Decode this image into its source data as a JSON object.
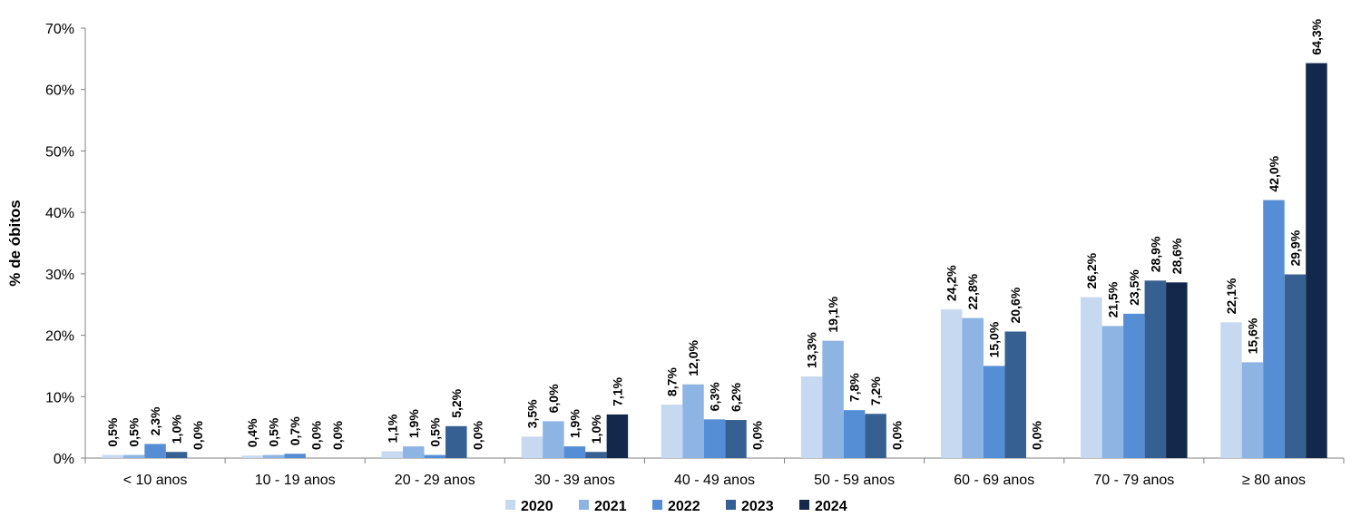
{
  "chart_data": {
    "type": "bar",
    "categories": [
      "< 10 anos",
      "10 - 19 anos",
      "20 - 29 anos",
      "30 - 39 anos",
      "40 - 49 anos",
      "50 - 59 anos",
      "60 - 69 anos",
      "70 - 79 anos",
      "≥ 80 anos"
    ],
    "series": [
      {
        "name": "2020",
        "color": "#c6d9f1",
        "values": [
          0.5,
          0.4,
          1.1,
          3.5,
          8.7,
          13.3,
          24.2,
          26.2,
          22.1
        ],
        "labels": [
          "0,5%",
          "0,4%",
          "1,1%",
          "3,5%",
          "8,7%",
          "13,3%",
          "24,2%",
          "26,2%",
          "22,1%"
        ]
      },
      {
        "name": "2021",
        "color": "#8eb4e3",
        "values": [
          0.5,
          0.5,
          1.9,
          6.0,
          12.0,
          19.1,
          22.8,
          21.5,
          15.6
        ],
        "labels": [
          "0,5%",
          "0,5%",
          "1,9%",
          "6,0%",
          "12,0%",
          "19,1%",
          "22,8%",
          "21,5%",
          "15,6%"
        ]
      },
      {
        "name": "2022",
        "color": "#558ed5",
        "values": [
          2.3,
          0.7,
          0.5,
          1.9,
          6.3,
          7.8,
          15.0,
          23.5,
          42.0
        ],
        "labels": [
          "2,3%",
          "0,7%",
          "0,5%",
          "1,9%",
          "6,3%",
          "7,8%",
          "15,0%",
          "23,5%",
          "42,0%"
        ]
      },
      {
        "name": "2023",
        "color": "#376092",
        "values": [
          1.0,
          0.0,
          5.2,
          1.0,
          6.2,
          7.2,
          20.6,
          28.9,
          29.9
        ],
        "labels": [
          "1,0%",
          "0,0%",
          "5,2%",
          "1,0%",
          "6,2%",
          "7,2%",
          "20,6%",
          "28,9%",
          "29,9%"
        ]
      },
      {
        "name": "2024",
        "color": "#14284b",
        "values": [
          0.0,
          0.0,
          0.0,
          7.1,
          0.0,
          0.0,
          0.0,
          28.6,
          64.3
        ],
        "labels": [
          "0,0%",
          "0,0%",
          "0,0%",
          "7,1%",
          "0,0%",
          "0,0%",
          "0,0%",
          "28,6%",
          "64,3%"
        ]
      }
    ],
    "ylabel": "% de óbitos",
    "xlabel": "",
    "ylim": [
      0,
      70
    ],
    "yticks": [
      0,
      10,
      20,
      30,
      40,
      50,
      60,
      70
    ],
    "ytick_labels": [
      "0%",
      "10%",
      "20%",
      "30%",
      "40%",
      "50%",
      "60%",
      "70%"
    ],
    "grid": false,
    "legend_position": "bottom"
  }
}
